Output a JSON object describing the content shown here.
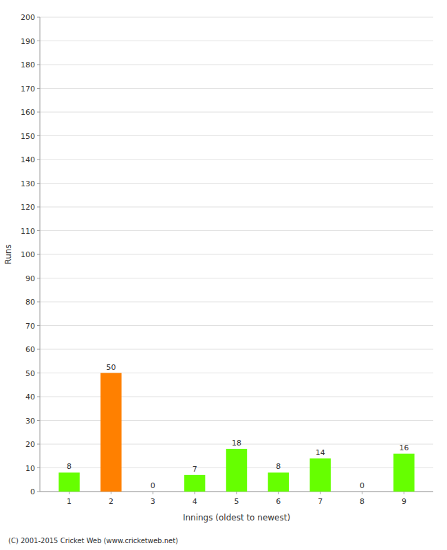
{
  "chart_data": {
    "type": "bar",
    "xlabel": "Innings (oldest to newest)",
    "ylabel": "Runs",
    "categories": [
      "1",
      "2",
      "3",
      "4",
      "5",
      "6",
      "7",
      "8",
      "9"
    ],
    "values": [
      8,
      50,
      0,
      7,
      18,
      8,
      14,
      0,
      16
    ],
    "colors": [
      "#66ff00",
      "#ff8000",
      "#66ff00",
      "#66ff00",
      "#66ff00",
      "#66ff00",
      "#66ff00",
      "#66ff00",
      "#66ff00"
    ],
    "ylim": [
      0,
      200
    ],
    "yticks": [
      0,
      10,
      20,
      30,
      40,
      50,
      60,
      70,
      80,
      90,
      100,
      110,
      120,
      130,
      140,
      150,
      160,
      170,
      180,
      190,
      200
    ],
    "grid": true,
    "data_labels": true,
    "annotations": [
      "(C) 2001-2015 Cricket Web (www.cricketweb.net)"
    ]
  }
}
